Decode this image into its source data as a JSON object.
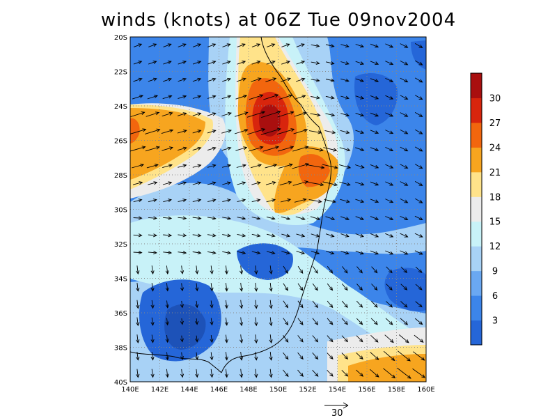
{
  "title": "winds (knots) at 06Z Tue 09nov2004",
  "map": {
    "lon_range": [
      140,
      160
    ],
    "lat_range": [
      -40,
      -20
    ],
    "x_tick_labels": [
      "140E",
      "142E",
      "144E",
      "146E",
      "148E",
      "150E",
      "152E",
      "154E",
      "156E",
      "158E",
      "160E"
    ],
    "y_tick_labels": [
      "20S",
      "22S",
      "24S",
      "26S",
      "28S",
      "30S",
      "32S",
      "34S",
      "36S",
      "38S",
      "40S"
    ],
    "grid": "dotted-gray",
    "features": [
      "coastline-black"
    ],
    "vector_reference": {
      "label": "30",
      "units": "knots"
    }
  },
  "colorbar": {
    "labels": [
      "3",
      "6",
      "9",
      "12",
      "15",
      "18",
      "21",
      "24",
      "27",
      "30"
    ],
    "colors": [
      "#2566d8",
      "#3c85ea",
      "#6aa8f2",
      "#a8d2f6",
      "#c8f2f8",
      "#ececec",
      "#ffe38a",
      "#f7a51f",
      "#f2660e",
      "#d8250d",
      "#a90f0f"
    ]
  },
  "field": {
    "description": "wind speed contours",
    "hotspots": [
      {
        "lon": 149.3,
        "lat": -25.0,
        "speed": 32
      },
      {
        "lon": 152.4,
        "lat": -27.7,
        "speed": 27
      },
      {
        "lon": 140.6,
        "lat": -25.7,
        "speed": 25
      },
      {
        "lon": 158.5,
        "lat": -39.3,
        "speed": 25
      },
      {
        "lon": 144.0,
        "lat": -36.7,
        "speed": 3
      }
    ]
  }
}
